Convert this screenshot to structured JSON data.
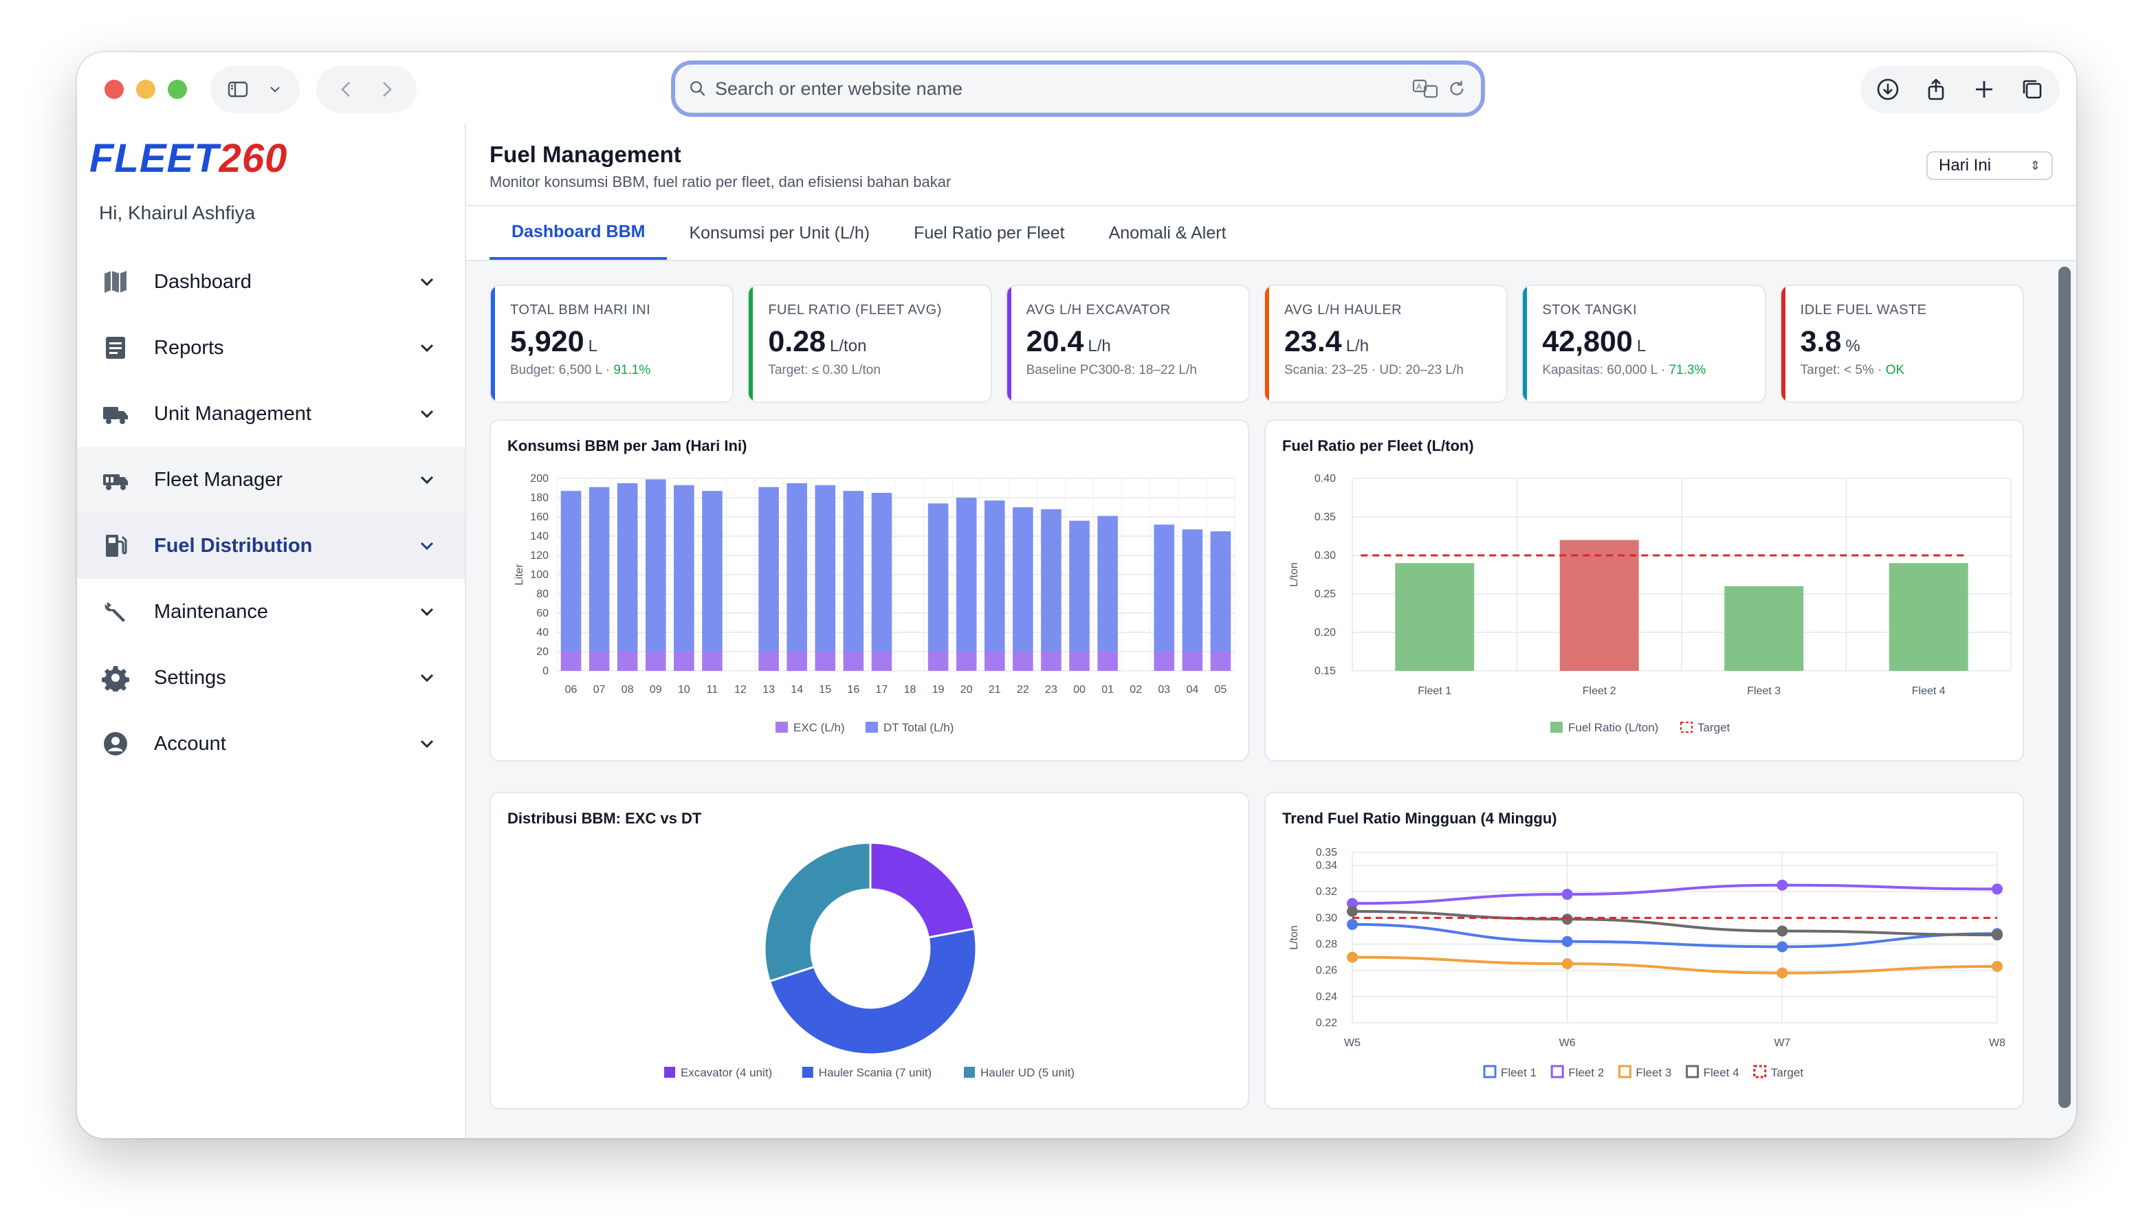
{
  "browser": {
    "search_placeholder": "Search or enter website name"
  },
  "sidebar": {
    "logo_main": "FLEET",
    "logo_num": "260",
    "greeting": "Hi, Khairul Ashfiya",
    "items": [
      {
        "label": "Dashboard",
        "icon": "map-icon"
      },
      {
        "label": "Reports",
        "icon": "document-icon"
      },
      {
        "label": "Unit Management",
        "icon": "truck-icon"
      },
      {
        "label": "Fleet Manager",
        "icon": "fleet-truck-icon"
      },
      {
        "label": "Fuel Distribution",
        "icon": "fuel-pump-icon"
      },
      {
        "label": "Maintenance",
        "icon": "wrench-icon"
      },
      {
        "label": "Settings",
        "icon": "gear-icon"
      },
      {
        "label": "Account",
        "icon": "user-circle-icon"
      }
    ]
  },
  "header": {
    "title": "Fuel Management",
    "subtitle": "Monitor konsumsi BBM, fuel ratio per fleet, dan efisiensi bahan bakar",
    "period": "Hari Ini"
  },
  "tabs": [
    "Dashboard BBM",
    "Konsumsi per Unit (L/h)",
    "Fuel Ratio per Fleet",
    "Anomali & Alert"
  ],
  "kpis": [
    {
      "label": "TOTAL BBM HARI INI",
      "value": "5,920",
      "unit": "L",
      "note": "Budget: 6,500 L · ",
      "note_good": "91.1%",
      "color": "#2563eb"
    },
    {
      "label": "FUEL RATIO (FLEET AVG)",
      "value": "0.28",
      "unit": "L/ton",
      "note": "Target: ≤ 0.30 L/ton",
      "note_good": "",
      "color": "#16a34a"
    },
    {
      "label": "AVG L/H EXCAVATOR",
      "value": "20.4",
      "unit": "L/h",
      "note": "Baseline PC300-8: 18–22 L/h",
      "note_good": "",
      "color": "#7c3aed"
    },
    {
      "label": "AVG L/H HAULER",
      "value": "23.4",
      "unit": "L/h",
      "note": "Scania: 23–25 · UD: 20–23 L/h",
      "note_good": "",
      "color": "#ea580c"
    },
    {
      "label": "STOK TANGKI",
      "value": "42,800",
      "unit": "L",
      "note": "Kapasitas: 60,000 L · ",
      "note_good": "71.3%",
      "color": "#0891b2"
    },
    {
      "label": "IDLE FUEL WASTE",
      "value": "3.8",
      "unit": "%",
      "note": "Target: < 5% · ",
      "note_good": "OK",
      "color": "#dc2626"
    }
  ],
  "chart_data": [
    {
      "type": "bar",
      "title": "Konsumsi BBM per Jam (Hari Ini)",
      "ylabel": "Liter",
      "ylim": [
        0,
        200
      ],
      "yticks": [
        0,
        20,
        40,
        60,
        80,
        100,
        120,
        140,
        160,
        180,
        200
      ],
      "stacked": true,
      "categories": [
        "06",
        "07",
        "08",
        "09",
        "10",
        "11",
        "12",
        "13",
        "14",
        "15",
        "16",
        "17",
        "18",
        "19",
        "20",
        "21",
        "22",
        "23",
        "00",
        "01",
        "02",
        "03",
        "04",
        "05"
      ],
      "series": [
        {
          "name": "EXC (L/h)",
          "color": "#a77bf0",
          "values": [
            20,
            20,
            20,
            20,
            20,
            20,
            0,
            20,
            20,
            20,
            20,
            20,
            0,
            20,
            20,
            20,
            20,
            20,
            20,
            20,
            0,
            20,
            20,
            20
          ]
        },
        {
          "name": "DT Total (L/h)",
          "color": "#7b8ff0",
          "values": [
            167,
            171,
            175,
            179,
            173,
            167,
            0,
            171,
            175,
            173,
            167,
            165,
            0,
            154,
            160,
            157,
            150,
            148,
            136,
            141,
            0,
            132,
            127,
            125
          ]
        }
      ]
    },
    {
      "type": "bar",
      "title": "Fuel Ratio per Fleet (L/ton)",
      "ylabel": "L/ton",
      "ylim": [
        0.15,
        0.4
      ],
      "yticks": [
        0.15,
        0.2,
        0.25,
        0.3,
        0.35,
        0.4
      ],
      "categories": [
        "Fleet 1",
        "Fleet 2",
        "Fleet 3",
        "Fleet 4"
      ],
      "series": [
        {
          "name": "Fuel Ratio (L/ton)",
          "values": [
            0.29,
            0.32,
            0.26,
            0.29
          ],
          "colors": [
            "#82c487",
            "#dd7474",
            "#82c487",
            "#82c487"
          ]
        },
        {
          "name": "Target",
          "type": "line",
          "values": [
            0.3,
            0.3,
            0.3,
            0.3
          ],
          "color": "#dc2626",
          "dashed": true
        }
      ]
    },
    {
      "type": "pie",
      "title": "Distribusi BBM: EXC vs DT",
      "donut": true,
      "categories": [
        "Excavator (4 unit)",
        "Hauler Scania (7 unit)",
        "Hauler UD (5 unit)"
      ],
      "values": [
        22,
        48,
        30
      ],
      "colors": [
        "#7c3aed",
        "#3b5fe0",
        "#3a8fb0"
      ]
    },
    {
      "type": "line",
      "title": "Trend Fuel Ratio Mingguan (4 Minggu)",
      "ylabel": "L/ton",
      "ylim": [
        0.22,
        0.35
      ],
      "yticks": [
        0.22,
        0.24,
        0.26,
        0.28,
        0.3,
        0.32,
        0.34,
        0.35
      ],
      "x": [
        "W5",
        "W6",
        "W7",
        "W8"
      ],
      "series": [
        {
          "name": "Fleet 1",
          "color": "#4f7ae8",
          "values": [
            0.295,
            0.282,
            0.278,
            0.288
          ]
        },
        {
          "name": "Fleet 2",
          "color": "#8b5cf6",
          "values": [
            0.311,
            0.318,
            0.325,
            0.322
          ]
        },
        {
          "name": "Fleet 3",
          "color": "#f0a03c",
          "values": [
            0.27,
            0.265,
            0.258,
            0.263
          ]
        },
        {
          "name": "Fleet 4",
          "color": "#6b6b6b",
          "values": [
            0.305,
            0.299,
            0.29,
            0.287
          ]
        },
        {
          "name": "Target",
          "color": "#dc2626",
          "dashed": true,
          "values": [
            0.3,
            0.3,
            0.3,
            0.3
          ]
        }
      ]
    }
  ]
}
